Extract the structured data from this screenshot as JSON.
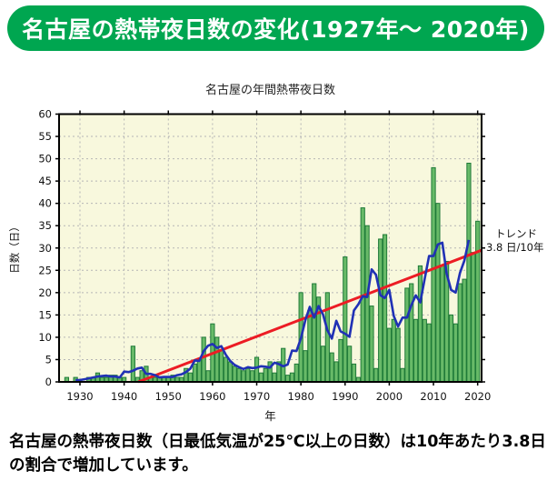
{
  "header": {
    "title": "名古屋の熱帯夜日数の変化(1927年～ 2020年)"
  },
  "chart_data": {
    "type": "bar",
    "title": "名古屋の年間熱帯夜日数",
    "xlabel": "年",
    "ylabel": "日数（日）",
    "ylim": [
      0,
      60
    ],
    "ytick_step": 5,
    "xticks": [
      1930,
      1940,
      1950,
      1960,
      1970,
      1980,
      1990,
      2000,
      2010,
      2020
    ],
    "grid": "dashed",
    "year_start": 1927,
    "year_end": 2020,
    "values": [
      1,
      0,
      1,
      0,
      0,
      1,
      1,
      2,
      1,
      1,
      1.5,
      1.5,
      1,
      1,
      0,
      8,
      1,
      2.5,
      3.5,
      1,
      1,
      1,
      1,
      1,
      1.5,
      1,
      1,
      3,
      2,
      4,
      5,
      10,
      2.5,
      13,
      10,
      7,
      5.5,
      4.5,
      3.5,
      3,
      2.5,
      3,
      2.5,
      5.5,
      2,
      3,
      4.5,
      2,
      4.5,
      7.5,
      1.5,
      2,
      4,
      20,
      7,
      16,
      22,
      19,
      8,
      20,
      6.5,
      4.5,
      9.5,
      28,
      8,
      4,
      1,
      39,
      35,
      17,
      3,
      32,
      33,
      12,
      14,
      12,
      3,
      21,
      22,
      14,
      26,
      14,
      13,
      48,
      40,
      26,
      27,
      15,
      13,
      22,
      23,
      49,
      29,
      36
    ],
    "moving_average": {
      "name": "5年移動平均",
      "window": 5
    },
    "trend": {
      "label_line1": "トレンド",
      "label_line2": "3.8 日/10年",
      "rate_per_decade": 3.8,
      "x_start_year": 1943.2,
      "y_start": 0,
      "x_end_year": 2020.9,
      "y_end": 29.5
    }
  },
  "caption": {
    "text": "名古屋の熱帯夜日数（日最低気温が25℃以上の日数）は10年あたり3.8日の割合で増加しています。"
  },
  "colors": {
    "header_bg": "#00a650",
    "header_text": "#ffffff",
    "bar_fill": "#68ba68",
    "bar_stroke": "#1f7a38",
    "ma_line": "#2031b5",
    "trend_line": "#ec1c24",
    "plot_bg": "#f8f8dd",
    "grid": "#b5b5b5",
    "axis": "#000000"
  }
}
